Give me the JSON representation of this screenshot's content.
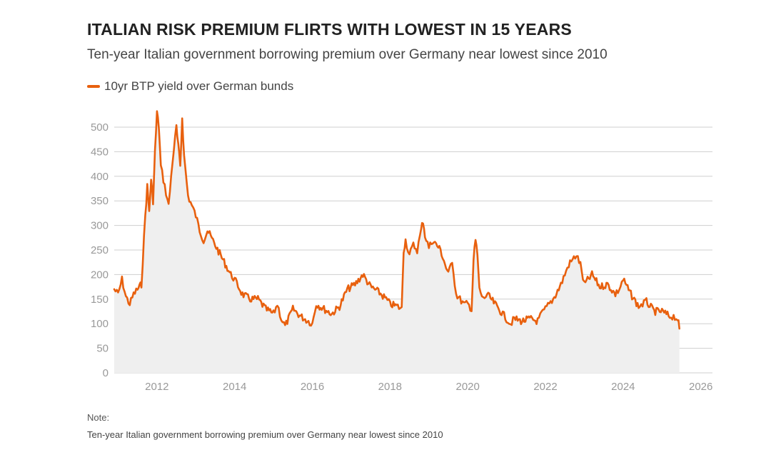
{
  "colors": {
    "series": "#e8600e",
    "grid": "#cfcfcf",
    "area": "#efefef",
    "axis_text": "#999999"
  },
  "chart_data": {
    "type": "line",
    "title": "ITALIAN RISK PREMIUM FLIRTS WITH LOWEST IN 15 YEARS",
    "subtitle": "Ten-year Italian government borrowing premium over Germany near lowest since 2010",
    "xlabel": "",
    "ylabel": "",
    "legend_position": "top-left",
    "ylim": [
      0,
      500
    ],
    "xlim": [
      2010.9,
      2026.3
    ],
    "y_ticks": [
      0,
      50,
      100,
      150,
      200,
      250,
      300,
      350,
      400,
      450,
      500
    ],
    "x_ticks": [
      "2012",
      "2014",
      "2016",
      "2018",
      "2020",
      "2022",
      "2024",
      "2026"
    ],
    "series": [
      {
        "name": "10yr BTP yield over German bunds",
        "x": [
          2010.9,
          2011.0,
          2011.1,
          2011.2,
          2011.3,
          2011.4,
          2011.5,
          2011.55,
          2011.6,
          2011.7,
          2011.75,
          2011.8,
          2011.85,
          2011.9,
          2011.95,
          2012.0,
          2012.05,
          2012.1,
          2012.2,
          2012.3,
          2012.4,
          2012.5,
          2012.55,
          2012.6,
          2012.65,
          2012.7,
          2012.8,
          2012.9,
          2013.0,
          2013.1,
          2013.2,
          2013.3,
          2013.5,
          2013.7,
          2013.9,
          2014.0,
          2014.2,
          2014.4,
          2014.6,
          2014.8,
          2015.0,
          2015.1,
          2015.2,
          2015.3,
          2015.5,
          2015.7,
          2015.9,
          2016.0,
          2016.1,
          2016.3,
          2016.5,
          2016.7,
          2016.9,
          2017.1,
          2017.3,
          2017.5,
          2017.7,
          2017.9,
          2018.0,
          2018.2,
          2018.3,
          2018.35,
          2018.4,
          2018.5,
          2018.6,
          2018.7,
          2018.8,
          2018.85,
          2018.9,
          2019.0,
          2019.1,
          2019.3,
          2019.5,
          2019.6,
          2019.7,
          2019.8,
          2019.9,
          2020.0,
          2020.1,
          2020.15,
          2020.2,
          2020.25,
          2020.3,
          2020.4,
          2020.5,
          2020.7,
          2020.9,
          2021.0,
          2021.1,
          2021.2,
          2021.4,
          2021.6,
          2021.8,
          2021.9,
          2022.0,
          2022.1,
          2022.2,
          2022.4,
          2022.5,
          2022.6,
          2022.7,
          2022.8,
          2022.9,
          2023.0,
          2023.2,
          2023.4,
          2023.6,
          2023.8,
          2023.9,
          2024.0,
          2024.2,
          2024.4,
          2024.5,
          2024.6,
          2024.8,
          2025.0,
          2025.2,
          2025.3,
          2025.4,
          2025.45
        ],
        "values": [
          170,
          160,
          190,
          155,
          140,
          160,
          170,
          175,
          180,
          320,
          380,
          330,
          390,
          350,
          450,
          530,
          500,
          420,
          380,
          340,
          430,
          500,
          460,
          420,
          520,
          440,
          360,
          340,
          320,
          290,
          270,
          290,
          260,
          230,
          200,
          190,
          160,
          150,
          150,
          130,
          120,
          140,
          110,
          95,
          130,
          115,
          105,
          100,
          140,
          130,
          120,
          135,
          170,
          180,
          200,
          175,
          165,
          150,
          140,
          135,
          130,
          250,
          270,
          240,
          260,
          250,
          290,
          310,
          280,
          255,
          270,
          250,
          200,
          230,
          160,
          150,
          140,
          140,
          130,
          230,
          270,
          240,
          170,
          150,
          160,
          140,
          120,
          110,
          100,
          110,
          105,
          110,
          105,
          120,
          130,
          140,
          150,
          180,
          200,
          220,
          230,
          240,
          220,
          180,
          200,
          175,
          180,
          160,
          170,
          190,
          160,
          135,
          140,
          145,
          125,
          125,
          115,
          115,
          110,
          90
        ]
      }
    ]
  },
  "note": {
    "label": "Note:",
    "text": "Ten-year Italian government borrowing premium over Germany near lowest since 2010"
  }
}
